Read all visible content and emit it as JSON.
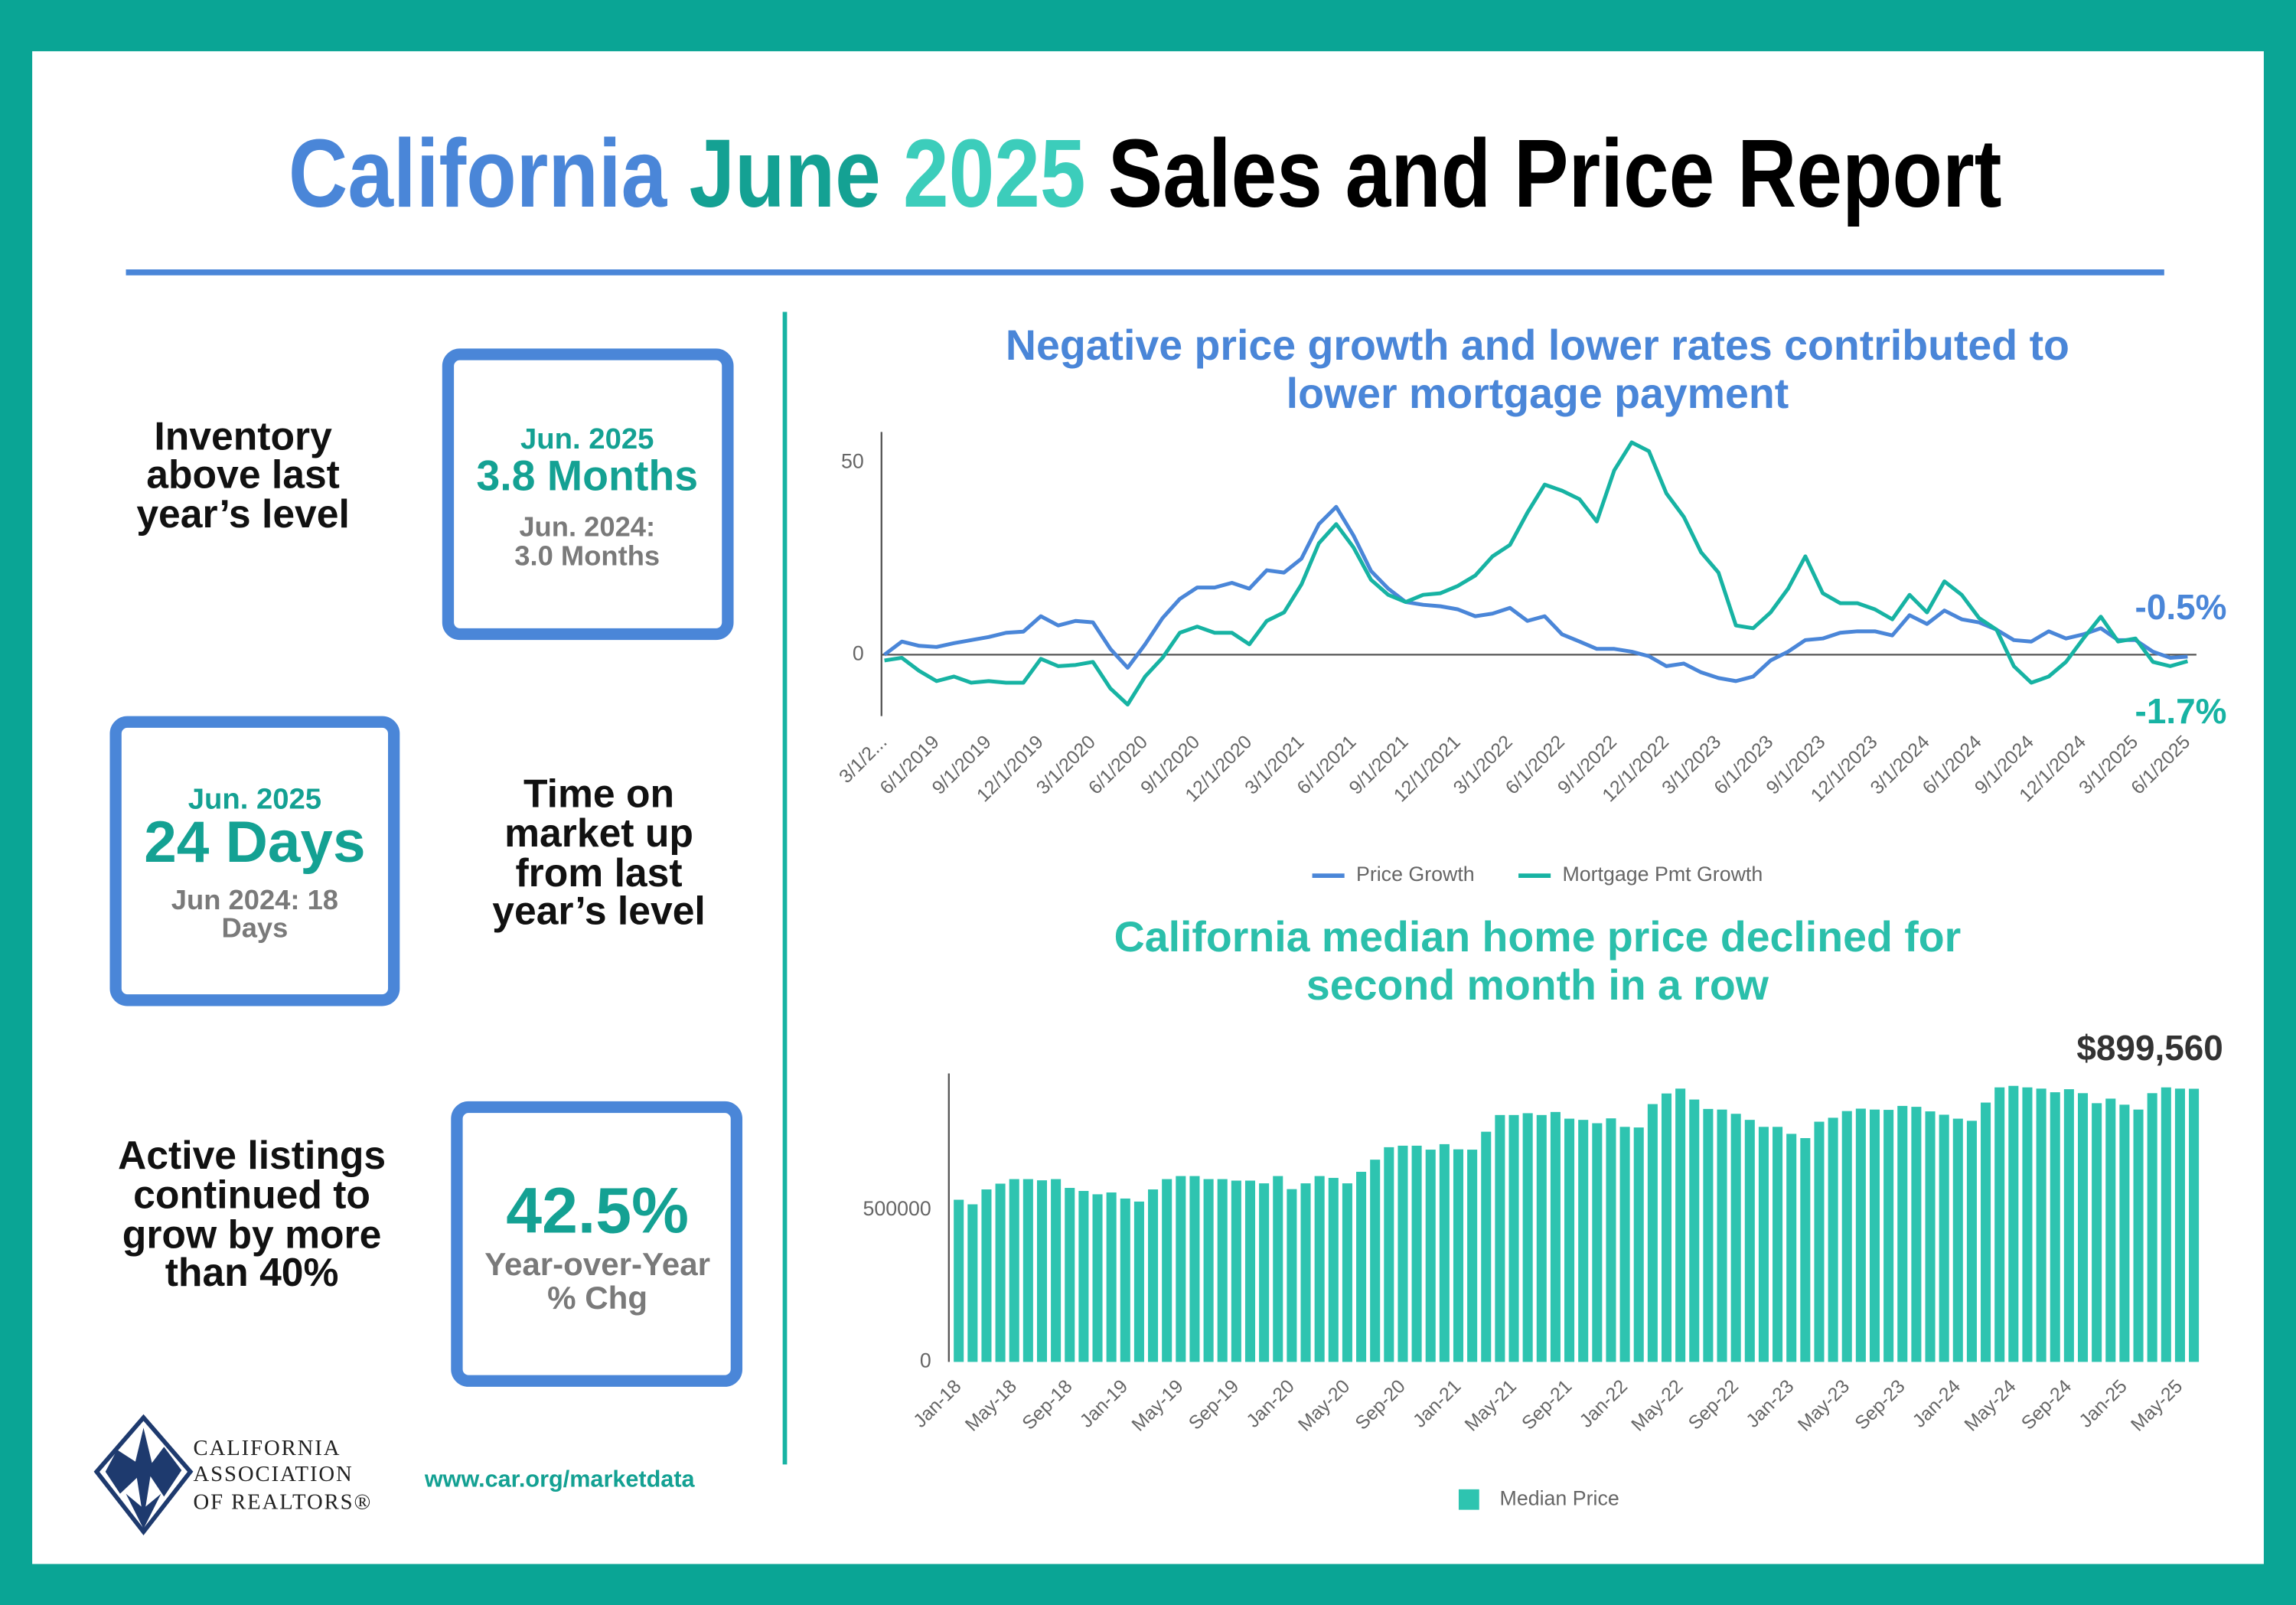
{
  "header": {
    "title": [
      "California",
      "June",
      "2025",
      "Sales and Price Report"
    ]
  },
  "panels": [
    {
      "caption": [
        "Inventory",
        "above last",
        "year’s level"
      ],
      "box": [
        "Jun. 2025",
        "3.8 Months",
        "Jun. 2024:",
        "3.0 Months"
      ]
    },
    {
      "box": [
        "Jun. 2025",
        "24 Days",
        "Jun 2024: 18",
        "Days"
      ],
      "caption": [
        "Time on",
        "market up",
        "from last",
        "year’s level"
      ]
    },
    {
      "caption": [
        "Active listings",
        "continued to",
        "grow by more",
        "than 40%"
      ],
      "box": [
        "42.5%",
        "Year-over-Year",
        "% Chg"
      ]
    }
  ],
  "footer": {
    "logo": [
      "CALIFORNIA",
      "ASSOCIATION",
      "OF REALTORS®"
    ],
    "url": "www.car.org/marketdata"
  },
  "chart_data": [
    {
      "type": "line",
      "title": [
        "Negative price growth and lower rates contributed to",
        "lower mortgage payment"
      ],
      "title_color": "#4a86d8",
      "categories": [
        "3/1/2...",
        null,
        null,
        "6/1/2019",
        null,
        null,
        "9/1/2019",
        null,
        null,
        "12/1/2019",
        null,
        null,
        "3/1/2020",
        null,
        null,
        "6/1/2020",
        null,
        null,
        "9/1/2020",
        null,
        null,
        "12/1/2020",
        null,
        null,
        "3/1/2021",
        null,
        null,
        "6/1/2021",
        null,
        null,
        "9/1/2021",
        null,
        null,
        "12/1/2021",
        null,
        null,
        "3/1/2022",
        null,
        null,
        "6/1/2022",
        null,
        null,
        "9/1/2022",
        null,
        null,
        "12/1/2022",
        null,
        null,
        "3/1/2023",
        null,
        null,
        "6/1/2023",
        null,
        null,
        "9/1/2023",
        null,
        null,
        "12/1/2023",
        null,
        null,
        "3/1/2024",
        null,
        null,
        "6/1/2024",
        null,
        null,
        "9/1/2024",
        null,
        null,
        "12/1/2024",
        null,
        null,
        "3/1/2025",
        null,
        null,
        "6/1/2025"
      ],
      "ylim": [
        -16,
        58
      ],
      "yticks": [
        0,
        50
      ],
      "legend": "bottom",
      "series": [
        {
          "name": "Price Growth",
          "color": "#4a86d8",
          "values": [
            0,
            3.4,
            2.3,
            2,
            3,
            3.8,
            4.6,
            5.7,
            6,
            10,
            7.6,
            8.8,
            8.4,
            1.5,
            -3.4,
            2.7,
            9.5,
            14.5,
            17.5,
            17.5,
            18.7,
            17.2,
            22,
            21.4,
            25,
            34,
            38.5,
            31,
            21.8,
            17.2,
            13.7,
            13,
            12.6,
            11.8,
            10,
            10.7,
            12.2,
            8.8,
            10,
            5.3,
            3.4,
            1.5,
            1.5,
            0.8,
            -0.4,
            -3,
            -2.3,
            -4.6,
            -6.1,
            -6.9,
            -5.7,
            -1.5,
            0.8,
            3.8,
            4.2,
            5.7,
            6.1,
            6.1,
            5,
            10.3,
            8,
            11.5,
            9.2,
            8.4,
            6.5,
            3.8,
            3.4,
            6.1,
            4.2,
            5.3,
            6.9,
            3.8,
            3.8,
            0.8,
            -0.8,
            -0.5
          ],
          "value_labels": [
            null,
            null,
            null,
            null,
            null,
            null,
            null,
            null,
            null,
            null,
            null,
            null,
            null,
            null,
            null,
            null,
            null,
            null,
            null,
            null,
            null,
            null,
            null,
            null,
            null,
            null,
            null,
            null,
            null,
            null,
            null,
            null,
            null,
            null,
            null,
            null,
            null,
            null,
            null,
            null,
            null,
            null,
            null,
            null,
            null,
            null,
            null,
            null,
            null,
            null,
            null,
            null,
            null,
            null,
            null,
            null,
            null,
            null,
            null,
            null,
            null,
            null,
            null,
            null,
            null,
            null,
            null,
            null,
            null,
            null,
            null,
            null,
            null,
            null,
            null,
            "-0.5%"
          ]
        },
        {
          "name": "Mortgage Pmt Growth",
          "color": "#17b3a3",
          "values": [
            -1.5,
            -0.8,
            -4.2,
            -6.9,
            -5.7,
            -7.3,
            -6.9,
            -7.3,
            -7.3,
            -1.1,
            -3,
            -2.7,
            -1.9,
            -8.8,
            -13,
            -5.7,
            -0.8,
            5.7,
            7.3,
            5.7,
            5.7,
            2.7,
            8.8,
            11,
            18.3,
            29,
            34,
            27.9,
            19.5,
            15.6,
            13.7,
            15.6,
            16,
            17.9,
            20.6,
            25.6,
            28.6,
            37,
            44.3,
            42.7,
            40.5,
            34.7,
            48,
            55.3,
            53,
            42,
            35.9,
            26.7,
            21.4,
            7.6,
            6.9,
            11,
            17.2,
            25.6,
            16,
            13.4,
            13.4,
            11.8,
            9.2,
            15.6,
            11,
            19.1,
            15.6,
            9.5,
            6.5,
            -3,
            -7.3,
            -5.7,
            -1.9,
            4.2,
            9.9,
            3.4,
            4.2,
            -1.9,
            -3,
            -1.7
          ],
          "value_labels": [
            null,
            null,
            null,
            null,
            null,
            null,
            null,
            null,
            null,
            null,
            null,
            null,
            null,
            null,
            null,
            null,
            null,
            null,
            null,
            null,
            null,
            null,
            null,
            null,
            null,
            null,
            null,
            null,
            null,
            null,
            null,
            null,
            null,
            null,
            null,
            null,
            null,
            null,
            null,
            null,
            null,
            null,
            null,
            null,
            null,
            null,
            null,
            null,
            null,
            null,
            null,
            null,
            null,
            null,
            null,
            null,
            null,
            null,
            null,
            null,
            null,
            null,
            null,
            null,
            null,
            null,
            null,
            null,
            null,
            null,
            null,
            null,
            null,
            null,
            null,
            "-1.7%"
          ]
        }
      ]
    },
    {
      "type": "bar",
      "title": [
        "California median home price declined for",
        "second month in a row"
      ],
      "title_color": "#2bbfab",
      "categories": [
        "Jan-18",
        null,
        null,
        null,
        "May-18",
        null,
        null,
        null,
        "Sep-18",
        null,
        null,
        null,
        "Jan-19",
        null,
        null,
        null,
        "May-19",
        null,
        null,
        null,
        "Sep-19",
        null,
        null,
        null,
        "Jan-20",
        null,
        null,
        null,
        "May-20",
        null,
        null,
        null,
        "Sep-20",
        null,
        null,
        null,
        "Jan-21",
        null,
        null,
        null,
        "May-21",
        null,
        null,
        null,
        "Sep-21",
        null,
        null,
        null,
        "Jan-22",
        null,
        null,
        null,
        "May-22",
        null,
        null,
        null,
        "Sep-22",
        null,
        null,
        null,
        "Jan-23",
        null,
        null,
        null,
        "May-23",
        null,
        null,
        null,
        "Sep-23",
        null,
        null,
        null,
        "Jan-24",
        null,
        null,
        null,
        "May-24",
        null,
        null,
        null,
        "Sep-24",
        null,
        null,
        null,
        "Jan-25",
        null,
        null,
        null,
        "May-25",
        null
      ],
      "ylim": [
        0,
        950000
      ],
      "yticks": [
        0,
        500000
      ],
      "legend": "bottom",
      "series": [
        {
          "name": "Median Price",
          "color": "#2ec4b0",
          "values": [
            534000,
            519000,
            568000,
            587000,
            602000,
            602000,
            598000,
            602000,
            573000,
            563000,
            552000,
            558000,
            538000,
            528000,
            568000,
            602000,
            612000,
            612000,
            602000,
            602000,
            597000,
            597000,
            588000,
            612000,
            569000,
            588000,
            612000,
            606000,
            588000,
            626000,
            666000,
            707000,
            712000,
            712000,
            699000,
            717000,
            700000,
            699000,
            758000,
            813000,
            813000,
            819000,
            813000,
            823000,
            801000,
            797000,
            786000,
            802000,
            774000,
            772000,
            849000,
            884000,
            900000,
            864000,
            833000,
            831000,
            817000,
            797000,
            774000,
            774000,
            751000,
            737000,
            791000,
            804000,
            826000,
            834000,
            831000,
            830000,
            843000,
            840000,
            825000,
            814000,
            801000,
            794000,
            854000,
            904000,
            909000,
            904000,
            900000,
            888000,
            898000,
            885000,
            852000,
            867000,
            847000,
            831000,
            885000,
            904000,
            900000,
            899560
          ],
          "value_labels": [
            null,
            null,
            null,
            null,
            null,
            null,
            null,
            null,
            null,
            null,
            null,
            null,
            null,
            null,
            null,
            null,
            null,
            null,
            null,
            null,
            null,
            null,
            null,
            null,
            null,
            null,
            null,
            null,
            null,
            null,
            null,
            null,
            null,
            null,
            null,
            null,
            null,
            null,
            null,
            null,
            null,
            null,
            null,
            null,
            null,
            null,
            null,
            null,
            null,
            null,
            null,
            null,
            null,
            null,
            null,
            null,
            null,
            null,
            null,
            null,
            null,
            null,
            null,
            null,
            null,
            null,
            null,
            null,
            null,
            null,
            null,
            null,
            null,
            null,
            null,
            null,
            null,
            null,
            null,
            null,
            null,
            null,
            null,
            null,
            null,
            null,
            null,
            null,
            null,
            "$899,560"
          ]
        }
      ]
    }
  ]
}
